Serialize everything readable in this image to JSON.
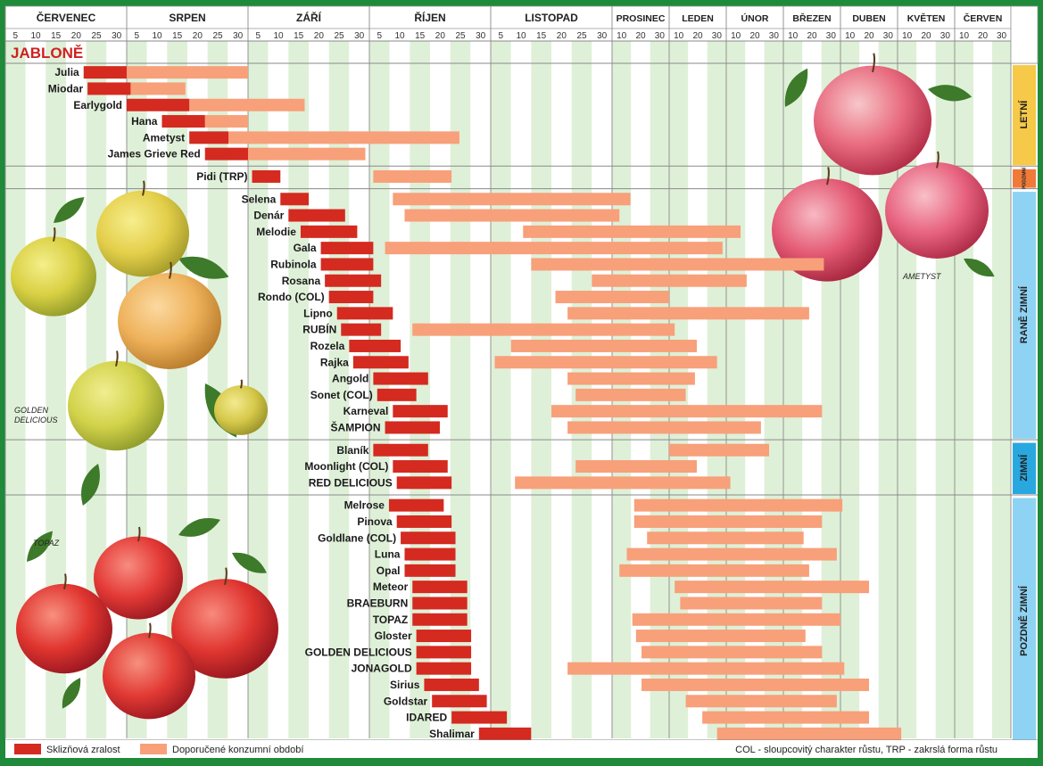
{
  "chart_data": {
    "type": "bar",
    "title": "JABLONĚ",
    "months": [
      {
        "label": "ČERVENEC",
        "ticks": [
          "5",
          "10",
          "15",
          "20",
          "25",
          "30"
        ]
      },
      {
        "label": "SRPEN",
        "ticks": [
          "5",
          "10",
          "15",
          "20",
          "25",
          "30"
        ]
      },
      {
        "label": "ZÁŘÍ",
        "ticks": [
          "5",
          "10",
          "15",
          "20",
          "25",
          "30"
        ]
      },
      {
        "label": "ŘÍJEN",
        "ticks": [
          "5",
          "10",
          "15",
          "20",
          "25",
          "30"
        ]
      },
      {
        "label": "LISTOPAD",
        "ticks": [
          "5",
          "10",
          "15",
          "20",
          "25",
          "30"
        ]
      },
      {
        "label": "PROSINEC",
        "ticks": [
          "10",
          "20",
          "30"
        ]
      },
      {
        "label": "LEDEN",
        "ticks": [
          "10",
          "20",
          "30"
        ]
      },
      {
        "label": "ÚNOR",
        "ticks": [
          "10",
          "20",
          "30"
        ]
      },
      {
        "label": "BŘEZEN",
        "ticks": [
          "10",
          "20",
          "30"
        ]
      },
      {
        "label": "DUBEN",
        "ticks": [
          "10",
          "20",
          "30"
        ]
      },
      {
        "label": "KVĚTEN",
        "ticks": [
          "10",
          "20",
          "30"
        ]
      },
      {
        "label": "ČERVEN",
        "ticks": [
          "10",
          "20",
          "30"
        ]
      }
    ],
    "series": [
      {
        "name": "Sklizňová zralost",
        "color": "#d42a20"
      },
      {
        "name": "Doporučené konzumní období",
        "color": "#f7a07a"
      }
    ],
    "groups": [
      {
        "label": "LETNÍ",
        "color": "#f7c948",
        "rows": [
          {
            "name": "Julia",
            "harvest": [
              "07-20",
              "07-31"
            ],
            "consume": [
              "07-31",
              "08-31"
            ]
          },
          {
            "name": "Miodar",
            "harvest": [
              "07-21",
              "08-01"
            ],
            "consume": [
              "08-01",
              "08-15"
            ]
          },
          {
            "name": "Earlygold",
            "harvest": [
              "07-31",
              "08-16"
            ],
            "consume": [
              "08-16",
              "09-14"
            ]
          },
          {
            "name": "Hana",
            "harvest": [
              "08-09",
              "08-20"
            ],
            "consume": [
              "08-20",
              "08-31"
            ]
          },
          {
            "name": "Ametyst",
            "harvest": [
              "08-16",
              "08-26"
            ],
            "consume": [
              "08-26",
              "10-23"
            ]
          },
          {
            "name": "James Grieve Red",
            "harvest": [
              "08-20",
              "08-31"
            ],
            "consume": [
              "08-31",
              "09-29"
            ]
          }
        ]
      },
      {
        "label": "PODZIMNÍ",
        "color": "#f07a3a",
        "rows": [
          {
            "name": "Pidi (TRP)",
            "harvest": [
              "09-01",
              "09-08"
            ],
            "consume": [
              "10-01",
              "10-21"
            ]
          }
        ]
      },
      {
        "label": "RANĚ ZIMNÍ",
        "color": "#8fd3f4",
        "rows": [
          {
            "name": "Selena",
            "harvest": [
              "09-08",
              "09-15"
            ],
            "consume": [
              "10-06",
              "12-10"
            ]
          },
          {
            "name": "Denár",
            "harvest": [
              "09-10",
              "09-24"
            ],
            "consume": [
              "10-09",
              "12-04"
            ]
          },
          {
            "name": "Melodie",
            "harvest": [
              "09-13",
              "09-27"
            ],
            "consume": [
              "11-08",
              "02-07"
            ]
          },
          {
            "name": "Gala",
            "harvest": [
              "09-18",
              "10-01"
            ],
            "consume": [
              "10-04",
              "01-29"
            ]
          },
          {
            "name": "Rubinola",
            "harvest": [
              "09-18",
              "10-01"
            ],
            "consume": [
              "11-10",
              "03-22"
            ]
          },
          {
            "name": "Rosana",
            "harvest": [
              "09-19",
              "10-03"
            ],
            "consume": [
              "11-25",
              "02-10"
            ]
          },
          {
            "name": "Rondo (COL)",
            "harvest": [
              "09-20",
              "10-01"
            ],
            "consume": [
              "11-16",
              "12-31"
            ]
          },
          {
            "name": "Lipno",
            "harvest": [
              "09-22",
              "10-06"
            ],
            "consume": [
              "11-19",
              "03-14"
            ]
          },
          {
            "name": "RUBÍN",
            "harvest": [
              "09-23",
              "10-03"
            ],
            "consume": [
              "10-11",
              "01-03"
            ]
          },
          {
            "name": "Rozela",
            "harvest": [
              "09-25",
              "10-08"
            ],
            "consume": [
              "11-05",
              "01-15"
            ]
          },
          {
            "name": "Rajka",
            "harvest": [
              "09-26",
              "10-10"
            ],
            "consume": [
              "11-01",
              "01-26"
            ]
          },
          {
            "name": "Angold",
            "harvest": [
              "10-01",
              "10-15"
            ],
            "consume": [
              "11-19",
              "01-14"
            ]
          },
          {
            "name": "Sonet (COL)",
            "harvest": [
              "10-02",
              "10-12"
            ],
            "consume": [
              "11-21",
              "01-09"
            ]
          },
          {
            "name": "Karneval",
            "harvest": [
              "10-06",
              "10-20"
            ],
            "consume": [
              "11-15",
              "03-21"
            ]
          },
          {
            "name": "ŠAMPION",
            "harvest": [
              "10-04",
              "10-18"
            ],
            "consume": [
              "11-19",
              "02-17"
            ]
          }
        ]
      },
      {
        "label": "ZIMNÍ",
        "color": "#29a8e0",
        "rows": [
          {
            "name": "Blaník",
            "harvest": [
              "10-01",
              "10-15"
            ],
            "consume": [
              "12-31",
              "02-21"
            ]
          },
          {
            "name": "Moonlight (COL)",
            "harvest": [
              "10-06",
              "10-20"
            ],
            "consume": [
              "11-21",
              "01-15"
            ]
          },
          {
            "name": "RED DELICIOUS",
            "harvest": [
              "10-07",
              "10-21"
            ],
            "consume": [
              "11-06",
              "02-02"
            ]
          }
        ]
      },
      {
        "label": "POZDNĚ ZIMNÍ",
        "color": "#8fd3f4",
        "rows": [
          {
            "name": "Melrose",
            "harvest": [
              "10-05",
              "10-19"
            ],
            "consume": [
              "12-12",
              "04-01"
            ]
          },
          {
            "name": "Pinova",
            "harvest": [
              "10-07",
              "10-21"
            ],
            "consume": [
              "12-12",
              "03-21"
            ]
          },
          {
            "name": "Goldlane (COL)",
            "harvest": [
              "10-08",
              "10-22"
            ],
            "consume": [
              "12-19",
              "03-11"
            ]
          },
          {
            "name": "Luna",
            "harvest": [
              "10-09",
              "10-22"
            ],
            "consume": [
              "12-08",
              "03-29"
            ]
          },
          {
            "name": "Opal",
            "harvest": [
              "10-09",
              "10-22"
            ],
            "consume": [
              "12-04",
              "03-14"
            ]
          },
          {
            "name": "Meteor",
            "harvest": [
              "10-11",
              "10-25"
            ],
            "consume": [
              "01-03",
              "04-15"
            ]
          },
          {
            "name": "BRAEBURN",
            "harvest": [
              "10-11",
              "10-25"
            ],
            "consume": [
              "01-06",
              "03-21"
            ]
          },
          {
            "name": "TOPAZ",
            "harvest": [
              "10-11",
              "10-25"
            ],
            "consume": [
              "12-11",
              "03-31"
            ]
          },
          {
            "name": "Gloster",
            "harvest": [
              "10-12",
              "10-26"
            ],
            "consume": [
              "12-13",
              "03-12"
            ]
          },
          {
            "name": "GOLDEN DELICIOUS",
            "harvest": [
              "10-12",
              "10-26"
            ],
            "consume": [
              "12-16",
              "03-21"
            ]
          },
          {
            "name": "JONAGOLD",
            "harvest": [
              "10-12",
              "10-26"
            ],
            "consume": [
              "11-19",
              "04-02"
            ]
          },
          {
            "name": "Sirius",
            "harvest": [
              "10-14",
              "10-28"
            ],
            "consume": [
              "12-16",
              "04-15"
            ]
          },
          {
            "name": "Goldstar",
            "harvest": [
              "10-16",
              "10-30"
            ],
            "consume": [
              "01-09",
              "03-29"
            ]
          },
          {
            "name": "IDARED",
            "harvest": [
              "10-21",
              "11-04"
            ],
            "consume": [
              "01-18",
              "04-15"
            ]
          },
          {
            "name": "Shalimar",
            "harvest": [
              "10-28",
              "11-10"
            ],
            "consume": [
              "01-26",
              "05-02"
            ]
          }
        ]
      }
    ],
    "legend_position": "bottom-left",
    "grid": true
  },
  "photos": [
    {
      "caption": "GOLDEN DELICIOUS",
      "kind": "yellow-apple"
    },
    {
      "caption": "AMETYST",
      "kind": "pink-apple"
    },
    {
      "caption": "TOPAZ",
      "kind": "red-apple"
    }
  ],
  "legend": {
    "harvest_label": "Sklizňová zralost",
    "consume_label": "Doporučené konzumní období",
    "note": "COL - sloupcovitý charakter růstu, TRP - zakrslá forma růstu"
  },
  "colors": {
    "frame": "#1e8a3a",
    "harvest": "#d42a20",
    "consume": "#f7a07a",
    "stripe_light": "#dff0d8",
    "stripe_white": "#ffffff",
    "header": "#ffffff"
  }
}
